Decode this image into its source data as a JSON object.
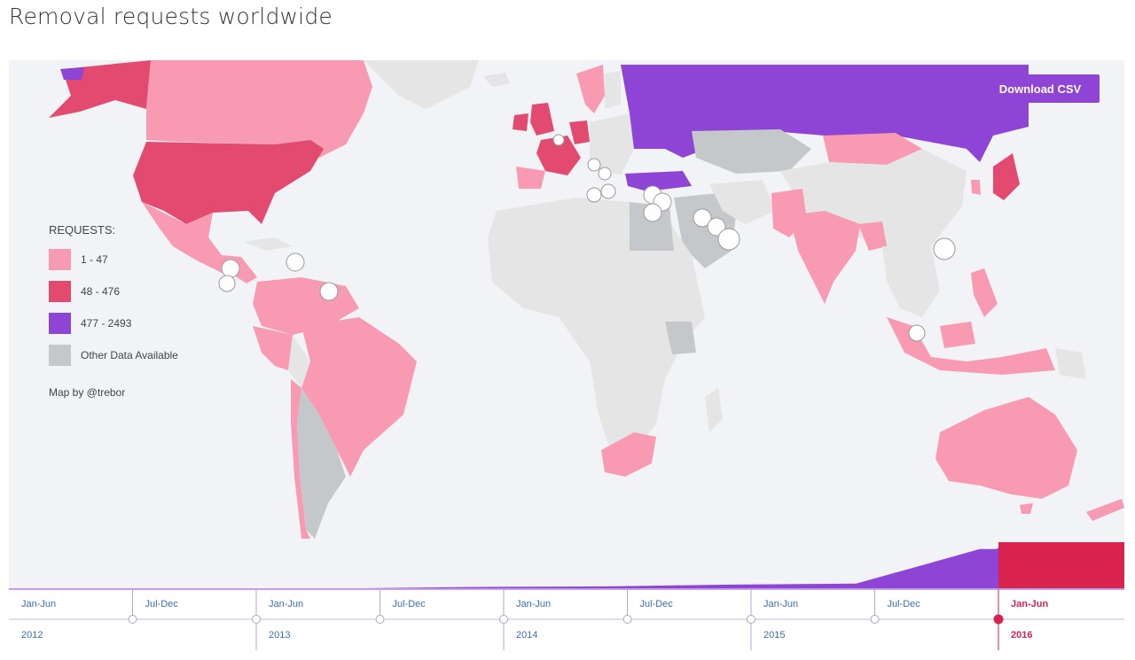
{
  "title": "Removal requests worldwide",
  "download_label": "Download CSV",
  "legend": {
    "title": "REQUESTS:",
    "items": [
      {
        "label": "1 - 47",
        "color": "#f89ab2"
      },
      {
        "label": "48 - 476",
        "color": "#e34a6f"
      },
      {
        "label": "477 - 2493",
        "color": "#8e44d4"
      },
      {
        "label": "Other Data Available",
        "color": "#c5c8cb"
      }
    ]
  },
  "credit": "Map by @trebor",
  "colors": {
    "ocean": "#f1f3f6",
    "land": "#e5e5e5",
    "light": "#f89ab2",
    "mid": "#e34a6f",
    "high": "#8e44d4",
    "other": "#c5c8cb",
    "active": "#d9234e",
    "link": "#3b6fb6"
  },
  "timeline": {
    "periods": [
      {
        "half": "Jan-Jun",
        "year": "2012",
        "value": 0
      },
      {
        "half": "Jul-Dec",
        "year": "",
        "value": 0
      },
      {
        "half": "Jan-Jun",
        "year": "2013",
        "value": 0
      },
      {
        "half": "Jul-Dec",
        "year": "",
        "value": 3
      },
      {
        "half": "Jan-Jun",
        "year": "2014",
        "value": 4
      },
      {
        "half": "Jul-Dec",
        "year": "",
        "value": 8
      },
      {
        "half": "Jan-Jun",
        "year": "2015",
        "value": 10
      },
      {
        "half": "Jul-Dec",
        "year": "",
        "value": 85
      },
      {
        "half": "Jan-Jun",
        "year": "2016",
        "value": 100,
        "active": true
      }
    ]
  }
}
